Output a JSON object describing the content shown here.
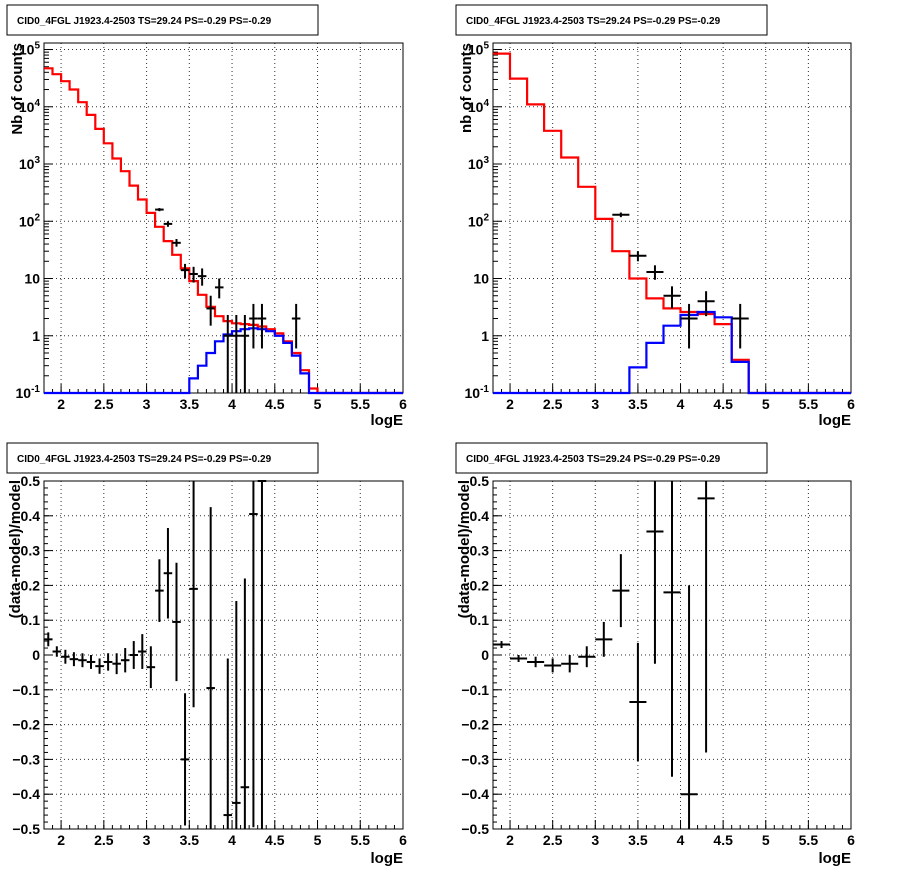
{
  "colors": {
    "data": "#000000",
    "model_total": "#ff0000",
    "model_source": "#0000ff",
    "grid": "#000000"
  },
  "chart_data": [
    {
      "type": "histogram-step",
      "title": "CID0_4FGL J1923.4-2503 TS=29.24 PS=-0.29 PS=-0.29",
      "xlabel": "logE",
      "ylabel": "Nb of counts",
      "xlim": [
        1.8,
        6.0
      ],
      "ylim": [
        0.1,
        130000
      ],
      "yscale": "log",
      "grid": true,
      "x_ticks": [
        "2",
        "2.5",
        "3",
        "3.5",
        "4",
        "4.5",
        "5",
        "5.5",
        "6"
      ],
      "y_ticks": [
        "10^-1",
        "1",
        "10",
        "10^2",
        "10^3",
        "10^4",
        "10^5"
      ],
      "bins": [
        1.8,
        1.9,
        2.0,
        2.1,
        2.2,
        2.3,
        2.4,
        2.5,
        2.6,
        2.7,
        2.8,
        2.9,
        3.0,
        3.1,
        3.2,
        3.3,
        3.4,
        3.5,
        3.6,
        3.7,
        3.8,
        3.9,
        4.0,
        4.1,
        4.2,
        4.3,
        4.4,
        4.5,
        4.6,
        4.7,
        4.8,
        4.9,
        5.0,
        5.1,
        5.2,
        5.3,
        5.4,
        5.5,
        5.6,
        5.7,
        5.8,
        5.9,
        6.0
      ],
      "series": [
        {
          "role": "model_total",
          "style": "step",
          "values": [
            47000,
            37000,
            28000,
            20000,
            12000,
            7200,
            4100,
            2300,
            1250,
            750,
            420,
            240,
            140,
            80,
            45,
            26,
            15,
            9,
            5.2,
            3.2,
            2.2,
            1.8,
            1.65,
            1.6,
            1.55,
            1.45,
            1.3,
            1.1,
            0.8,
            0.5,
            0.25,
            0.12,
            0.1,
            0.1,
            0.1,
            0.1,
            0.1,
            0.1,
            0.1,
            0.1,
            0.1,
            0.1
          ]
        },
        {
          "role": "model_source",
          "style": "step",
          "values": [
            0.1,
            0.1,
            0.1,
            0.1,
            0.1,
            0.1,
            0.1,
            0.1,
            0.1,
            0.1,
            0.1,
            0.1,
            0.1,
            0.1,
            0.1,
            0.1,
            0.1,
            0.18,
            0.3,
            0.5,
            0.8,
            1.05,
            1.2,
            1.3,
            1.35,
            1.3,
            1.2,
            1.0,
            0.75,
            0.45,
            0.22,
            0.1,
            0.1,
            0.1,
            0.1,
            0.1,
            0.1,
            0.1,
            0.1,
            0.1,
            0.1,
            0.1
          ]
        },
        {
          "role": "data",
          "style": "errorbar",
          "points": [
            {
              "x": 3.15,
              "y": 160,
              "ylo": 150,
              "yhi": 170
            },
            {
              "x": 3.25,
              "y": 90,
              "ylo": 80,
              "yhi": 100
            },
            {
              "x": 3.35,
              "y": 42,
              "ylo": 36,
              "yhi": 49
            },
            {
              "x": 3.45,
              "y": 14,
              "ylo": 10,
              "yhi": 18
            },
            {
              "x": 3.55,
              "y": 12,
              "ylo": 8.5,
              "yhi": 16
            },
            {
              "x": 3.65,
              "y": 11,
              "ylo": 7.5,
              "yhi": 15
            },
            {
              "x": 3.75,
              "y": 3,
              "ylo": 1.5,
              "yhi": 5
            },
            {
              "x": 3.85,
              "y": 7,
              "ylo": 4.5,
              "yhi": 10
            },
            {
              "x": 3.95,
              "y": 1,
              "ylo": 0.1,
              "yhi": 2.3
            },
            {
              "x": 4.05,
              "y": 1,
              "ylo": 0.1,
              "yhi": 2.3
            },
            {
              "x": 4.15,
              "y": 1,
              "ylo": 0.1,
              "yhi": 2.3
            },
            {
              "x": 4.25,
              "y": 2,
              "ylo": 0.6,
              "yhi": 3.6
            },
            {
              "x": 4.35,
              "y": 2,
              "ylo": 0.6,
              "yhi": 3.6
            },
            {
              "x": 4.75,
              "y": 2,
              "ylo": 0.6,
              "yhi": 3.6
            }
          ]
        }
      ]
    },
    {
      "type": "histogram-step",
      "title": "CID0_4FGL J1923.4-2503 TS=29.24 PS=-0.29 PS=-0.29",
      "xlabel": "logE",
      "ylabel": "nb of counts",
      "xlim": [
        1.8,
        6.0
      ],
      "ylim": [
        0.1,
        130000
      ],
      "yscale": "log",
      "grid": true,
      "x_ticks": [
        "2",
        "2.5",
        "3",
        "3.5",
        "4",
        "4.5",
        "5",
        "5.5",
        "6"
      ],
      "y_ticks": [
        "10^-1",
        "1",
        "10",
        "10^2",
        "10^3",
        "10^4",
        "10^5"
      ],
      "bins": [
        1.8,
        2.0,
        2.2,
        2.4,
        2.6,
        2.8,
        3.0,
        3.2,
        3.4,
        3.6,
        3.8,
        4.0,
        4.2,
        4.4,
        4.6,
        4.8,
        5.0,
        5.2,
        5.4,
        5.6,
        5.8,
        6.0
      ],
      "series": [
        {
          "role": "model_total",
          "style": "step",
          "values": [
            85000,
            31000,
            11000,
            3800,
            1300,
            400,
            110,
            30,
            10,
            4.5,
            3.0,
            2.6,
            2.4,
            1.6,
            0.38,
            0.1,
            0.1,
            0.1,
            0.1,
            0.1,
            0.1
          ]
        },
        {
          "role": "model_source",
          "style": "step",
          "values": [
            0.1,
            0.1,
            0.1,
            0.1,
            0.1,
            0.1,
            0.1,
            0.1,
            0.28,
            0.75,
            1.5,
            2.3,
            2.6,
            2.1,
            0.35,
            0.1,
            0.1,
            0.1,
            0.1,
            0.1,
            0.1
          ]
        },
        {
          "role": "data",
          "style": "errorbar",
          "points": [
            {
              "x": 3.3,
              "y": 130,
              "ylo": 118,
              "yhi": 142
            },
            {
              "x": 3.5,
              "y": 25,
              "ylo": 20,
              "yhi": 30
            },
            {
              "x": 3.7,
              "y": 13,
              "ylo": 9.5,
              "yhi": 17
            },
            {
              "x": 3.9,
              "y": 5,
              "ylo": 3,
              "yhi": 7.3
            },
            {
              "x": 4.1,
              "y": 2,
              "ylo": 0.6,
              "yhi": 3.6
            },
            {
              "x": 4.3,
              "y": 4,
              "ylo": 2.2,
              "yhi": 6
            },
            {
              "x": 4.7,
              "y": 2,
              "ylo": 0.6,
              "yhi": 3.6
            }
          ]
        }
      ]
    },
    {
      "type": "scatter-errorbar",
      "title": "CID0_4FGL J1923.4-2503 TS=29.24 PS=-0.29 PS=-0.29",
      "xlabel": "logE",
      "ylabel": "(data-model)/model",
      "xlim": [
        1.8,
        6.0
      ],
      "ylim": [
        -0.5,
        0.5
      ],
      "grid": true,
      "x_ticks": [
        "2",
        "2.5",
        "3",
        "3.5",
        "4",
        "4.5",
        "5",
        "5.5",
        "6"
      ],
      "y_ticks": [
        "-0.5",
        "-0.4",
        "-0.3",
        "-0.2",
        "-0.1",
        "0",
        "0.1",
        "0.2",
        "0.3",
        "0.4",
        "0.5"
      ],
      "bin_half_width": 0.05,
      "points": [
        {
          "x": 1.85,
          "y": 0.045,
          "err": 0.02
        },
        {
          "x": 1.95,
          "y": 0.01,
          "err": 0.015
        },
        {
          "x": 2.05,
          "y": -0.005,
          "err": 0.02
        },
        {
          "x": 2.15,
          "y": -0.012,
          "err": 0.02
        },
        {
          "x": 2.25,
          "y": -0.015,
          "err": 0.02
        },
        {
          "x": 2.35,
          "y": -0.02,
          "err": 0.02
        },
        {
          "x": 2.45,
          "y": -0.032,
          "err": 0.022
        },
        {
          "x": 2.55,
          "y": -0.02,
          "err": 0.025
        },
        {
          "x": 2.65,
          "y": -0.025,
          "err": 0.03
        },
        {
          "x": 2.75,
          "y": -0.015,
          "err": 0.035
        },
        {
          "x": 2.85,
          "y": 0.0,
          "err": 0.04
        },
        {
          "x": 2.95,
          "y": 0.01,
          "err": 0.05
        },
        {
          "x": 3.05,
          "y": -0.035,
          "err": 0.06
        },
        {
          "x": 3.15,
          "y": 0.185,
          "err": 0.09
        },
        {
          "x": 3.25,
          "y": 0.235,
          "err": 0.13
        },
        {
          "x": 3.35,
          "y": 0.095,
          "err": 0.17
        },
        {
          "x": 3.45,
          "y": -0.3,
          "err": 0.19
        },
        {
          "x": 3.55,
          "y": 0.19,
          "err": 0.34
        },
        {
          "x": 3.75,
          "y": -0.095,
          "err": 0.52
        },
        {
          "x": 3.95,
          "y": -0.46,
          "err": 0.45
        },
        {
          "x": 4.05,
          "y": -0.425,
          "err": 0.58
        },
        {
          "x": 4.15,
          "y": -0.38,
          "err": 0.6
        },
        {
          "x": 4.25,
          "y": 0.405,
          "err": 0.9
        },
        {
          "x": 4.35,
          "y": 0.5,
          "err": 1.0
        }
      ]
    },
    {
      "type": "scatter-errorbar",
      "title": "CID0_4FGL J1923.4-2503 TS=29.24 PS=-0.29 PS=-0.29",
      "xlabel": "logE",
      "ylabel": "(data-model)/model",
      "xlim": [
        1.8,
        6.0
      ],
      "ylim": [
        -0.5,
        0.5
      ],
      "grid": true,
      "x_ticks": [
        "2",
        "2.5",
        "3",
        "3.5",
        "4",
        "4.5",
        "5",
        "5.5",
        "6"
      ],
      "y_ticks": [
        "-0.5",
        "-0.4",
        "-0.3",
        "-0.2",
        "-0.1",
        "0",
        "0.1",
        "0.2",
        "0.3",
        "0.4",
        "0.5"
      ],
      "bin_half_width": 0.1,
      "points": [
        {
          "x": 1.9,
          "y": 0.03,
          "err": 0.01
        },
        {
          "x": 2.1,
          "y": -0.01,
          "err": 0.01
        },
        {
          "x": 2.3,
          "y": -0.02,
          "err": 0.015
        },
        {
          "x": 2.5,
          "y": -0.03,
          "err": 0.02
        },
        {
          "x": 2.7,
          "y": -0.025,
          "err": 0.025
        },
        {
          "x": 2.9,
          "y": -0.005,
          "err": 0.03
        },
        {
          "x": 3.1,
          "y": 0.045,
          "err": 0.05
        },
        {
          "x": 3.3,
          "y": 0.185,
          "err": 0.105
        },
        {
          "x": 3.5,
          "y": -0.135,
          "err": 0.17
        },
        {
          "x": 3.7,
          "y": 0.355,
          "err": 0.38
        },
        {
          "x": 3.9,
          "y": 0.18,
          "err": 0.53
        },
        {
          "x": 4.1,
          "y": -0.4,
          "err": 0.6
        },
        {
          "x": 4.3,
          "y": 0.45,
          "err": 0.73
        }
      ]
    }
  ]
}
